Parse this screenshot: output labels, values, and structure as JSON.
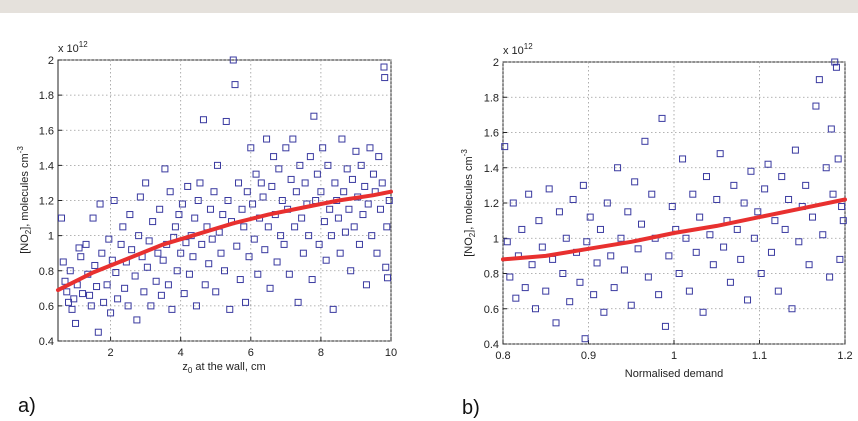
{
  "chart_data": [
    {
      "type": "scatter",
      "panel_label": "a)",
      "xlabel_main": "z",
      "xlabel_sub": "0",
      "xlabel_rest": " at the wall, cm",
      "ylabel_main": "[NO",
      "ylabel_sub": "2",
      "ylabel_rest": "], molecules cm",
      "ylabel_sup": "-3",
      "exponent_base": "x 10",
      "exponent_power": "12",
      "xlim": [
        0.5,
        10
      ],
      "ylim": [
        0.4,
        2.0
      ],
      "xticks": [
        2,
        4,
        6,
        8,
        10
      ],
      "yticks": [
        0.4,
        0.6,
        0.8,
        1.0,
        1.2,
        1.4,
        1.6,
        1.8,
        2.0
      ],
      "xtick_labels": [
        "2",
        "4",
        "6",
        "8",
        "10"
      ],
      "ytick_labels": [
        "0.4",
        "0.6",
        "0.8",
        "1",
        "1.2",
        "1.4",
        "1.6",
        "1.8",
        "2"
      ],
      "grid": true,
      "marker_color": "#3a3aa0",
      "fit_color": "#e8302f",
      "points": [
        [
          0.6,
          1.1
        ],
        [
          0.65,
          0.85
        ],
        [
          0.7,
          0.74
        ],
        [
          0.75,
          0.68
        ],
        [
          0.8,
          0.62
        ],
        [
          0.85,
          0.8
        ],
        [
          0.9,
          0.58
        ],
        [
          0.95,
          0.64
        ],
        [
          1.0,
          0.5
        ],
        [
          1.05,
          0.72
        ],
        [
          1.1,
          0.93
        ],
        [
          1.15,
          0.88
        ],
        [
          1.2,
          0.67
        ],
        [
          1.3,
          0.95
        ],
        [
          1.35,
          0.78
        ],
        [
          1.4,
          0.66
        ],
        [
          1.45,
          0.6
        ],
        [
          1.5,
          1.1
        ],
        [
          1.55,
          0.83
        ],
        [
          1.6,
          0.71
        ],
        [
          1.65,
          0.45
        ],
        [
          1.7,
          1.18
        ],
        [
          1.75,
          0.9
        ],
        [
          1.8,
          0.62
        ],
        [
          1.9,
          0.72
        ],
        [
          1.95,
          0.98
        ],
        [
          2.0,
          0.56
        ],
        [
          2.05,
          0.86
        ],
        [
          2.1,
          1.2
        ],
        [
          2.15,
          0.79
        ],
        [
          2.2,
          0.64
        ],
        [
          2.3,
          0.95
        ],
        [
          2.35,
          1.05
        ],
        [
          2.4,
          0.7
        ],
        [
          2.45,
          0.85
        ],
        [
          2.5,
          0.6
        ],
        [
          2.55,
          1.12
        ],
        [
          2.6,
          0.92
        ],
        [
          2.7,
          0.77
        ],
        [
          2.75,
          0.52
        ],
        [
          2.8,
          1.0
        ],
        [
          2.85,
          1.22
        ],
        [
          2.9,
          0.88
        ],
        [
          2.95,
          0.68
        ],
        [
          3.0,
          1.3
        ],
        [
          3.05,
          0.82
        ],
        [
          3.1,
          0.97
        ],
        [
          3.15,
          0.6
        ],
        [
          3.2,
          1.08
        ],
        [
          3.3,
          0.74
        ],
        [
          3.35,
          0.9
        ],
        [
          3.4,
          1.15
        ],
        [
          3.45,
          0.66
        ],
        [
          3.5,
          0.86
        ],
        [
          3.55,
          1.38
        ],
        [
          3.6,
          0.95
        ],
        [
          3.65,
          0.72
        ],
        [
          3.7,
          1.25
        ],
        [
          3.75,
          0.58
        ],
        [
          3.8,
          0.99
        ],
        [
          3.85,
          1.05
        ],
        [
          3.9,
          0.8
        ],
        [
          3.95,
          1.12
        ],
        [
          4.0,
          0.9
        ],
        [
          4.05,
          1.18
        ],
        [
          4.1,
          0.67
        ],
        [
          4.15,
          0.96
        ],
        [
          4.2,
          1.28
        ],
        [
          4.25,
          0.78
        ],
        [
          4.3,
          1.0
        ],
        [
          4.35,
          0.88
        ],
        [
          4.4,
          1.1
        ],
        [
          4.45,
          0.6
        ],
        [
          4.5,
          1.2
        ],
        [
          4.55,
          1.3
        ],
        [
          4.6,
          0.95
        ],
        [
          4.65,
          1.66
        ],
        [
          4.7,
          0.72
        ],
        [
          4.75,
          1.05
        ],
        [
          4.8,
          0.84
        ],
        [
          4.85,
          1.15
        ],
        [
          4.9,
          0.98
        ],
        [
          4.95,
          1.25
        ],
        [
          5.0,
          0.68
        ],
        [
          5.05,
          1.4
        ],
        [
          5.1,
          1.02
        ],
        [
          5.15,
          0.9
        ],
        [
          5.2,
          1.12
        ],
        [
          5.25,
          0.8
        ],
        [
          5.3,
          1.65
        ],
        [
          5.35,
          1.2
        ],
        [
          5.4,
          0.58
        ],
        [
          5.45,
          1.08
        ],
        [
          5.5,
          2.0
        ],
        [
          5.55,
          1.86
        ],
        [
          5.6,
          0.94
        ],
        [
          5.65,
          1.3
        ],
        [
          5.7,
          0.75
        ],
        [
          5.75,
          1.15
        ],
        [
          5.8,
          1.05
        ],
        [
          5.85,
          0.62
        ],
        [
          5.9,
          1.25
        ],
        [
          5.95,
          0.88
        ],
        [
          6.0,
          1.5
        ],
        [
          6.05,
          1.18
        ],
        [
          6.1,
          0.98
        ],
        [
          6.15,
          1.35
        ],
        [
          6.2,
          0.78
        ],
        [
          6.25,
          1.1
        ],
        [
          6.3,
          1.3
        ],
        [
          6.35,
          1.22
        ],
        [
          6.4,
          0.92
        ],
        [
          6.45,
          1.55
        ],
        [
          6.5,
          1.05
        ],
        [
          6.55,
          0.7
        ],
        [
          6.6,
          1.28
        ],
        [
          6.65,
          1.45
        ],
        [
          6.7,
          1.12
        ],
        [
          6.75,
          0.85
        ],
        [
          6.8,
          1.38
        ],
        [
          6.85,
          1.0
        ],
        [
          6.9,
          1.2
        ],
        [
          6.95,
          0.95
        ],
        [
          7.0,
          1.5
        ],
        [
          7.05,
          1.15
        ],
        [
          7.1,
          0.78
        ],
        [
          7.15,
          1.32
        ],
        [
          7.2,
          1.55
        ],
        [
          7.25,
          1.05
        ],
        [
          7.3,
          1.25
        ],
        [
          7.35,
          0.62
        ],
        [
          7.4,
          1.4
        ],
        [
          7.45,
          1.1
        ],
        [
          7.5,
          0.9
        ],
        [
          7.55,
          1.3
        ],
        [
          7.6,
          1.18
        ],
        [
          7.65,
          1.0
        ],
        [
          7.7,
          1.45
        ],
        [
          7.75,
          0.75
        ],
        [
          7.8,
          1.68
        ],
        [
          7.85,
          1.2
        ],
        [
          7.9,
          1.35
        ],
        [
          7.95,
          0.95
        ],
        [
          8.0,
          1.25
        ],
        [
          8.05,
          1.5
        ],
        [
          8.1,
          1.08
        ],
        [
          8.15,
          0.86
        ],
        [
          8.2,
          1.4
        ],
        [
          8.25,
          1.15
        ],
        [
          8.3,
          1.0
        ],
        [
          8.35,
          0.58
        ],
        [
          8.4,
          1.3
        ],
        [
          8.45,
          1.2
        ],
        [
          8.5,
          1.1
        ],
        [
          8.55,
          0.9
        ],
        [
          8.6,
          1.55
        ],
        [
          8.65,
          1.25
        ],
        [
          8.7,
          1.02
        ],
        [
          8.75,
          1.38
        ],
        [
          8.8,
          1.15
        ],
        [
          8.85,
          0.8
        ],
        [
          8.9,
          1.32
        ],
        [
          8.95,
          1.05
        ],
        [
          9.0,
          1.48
        ],
        [
          9.05,
          1.22
        ],
        [
          9.1,
          0.95
        ],
        [
          9.15,
          1.4
        ],
        [
          9.2,
          1.12
        ],
        [
          9.25,
          1.28
        ],
        [
          9.3,
          0.72
        ],
        [
          9.35,
          1.18
        ],
        [
          9.4,
          1.5
        ],
        [
          9.45,
          1.0
        ],
        [
          9.5,
          1.35
        ],
        [
          9.55,
          1.25
        ],
        [
          9.6,
          0.9
        ],
        [
          9.65,
          1.45
        ],
        [
          9.7,
          1.15
        ],
        [
          9.75,
          1.3
        ],
        [
          9.8,
          1.96
        ],
        [
          9.82,
          1.9
        ],
        [
          9.85,
          0.82
        ],
        [
          9.88,
          1.05
        ],
        [
          9.9,
          0.76
        ],
        [
          9.95,
          1.2
        ]
      ],
      "fit": [
        [
          0.5,
          0.69
        ],
        [
          1.5,
          0.79
        ],
        [
          2.5,
          0.87
        ],
        [
          3.5,
          0.95
        ],
        [
          4.5,
          1.01
        ],
        [
          5.5,
          1.07
        ],
        [
          6.5,
          1.12
        ],
        [
          7.5,
          1.16
        ],
        [
          8.5,
          1.2
        ],
        [
          9.5,
          1.23
        ],
        [
          10,
          1.25
        ]
      ]
    },
    {
      "type": "scatter",
      "panel_label": "b)",
      "xlabel_main": "Normalised demand",
      "ylabel_main": "[NO",
      "ylabel_sub": "2",
      "ylabel_rest": "], molecules cm",
      "ylabel_sup": "-3",
      "exponent_base": "x 10",
      "exponent_power": "12",
      "xlim": [
        0.8,
        1.2
      ],
      "ylim": [
        0.4,
        2.0
      ],
      "xticks": [
        0.8,
        0.9,
        1.0,
        1.1,
        1.2
      ],
      "yticks": [
        0.4,
        0.6,
        0.8,
        1.0,
        1.2,
        1.4,
        1.6,
        1.8,
        2.0
      ],
      "xtick_labels": [
        "0.8",
        "0.9",
        "1",
        "1.1",
        "1.2"
      ],
      "ytick_labels": [
        "0.4",
        "0.6",
        "0.8",
        "1",
        "1.2",
        "1.4",
        "1.6",
        "1.8",
        "2"
      ],
      "grid": true,
      "marker_color": "#3a3aa0",
      "fit_color": "#e8302f",
      "points": [
        [
          0.802,
          1.52
        ],
        [
          0.805,
          0.98
        ],
        [
          0.808,
          0.78
        ],
        [
          0.812,
          1.2
        ],
        [
          0.815,
          0.66
        ],
        [
          0.818,
          0.9
        ],
        [
          0.822,
          1.05
        ],
        [
          0.826,
          0.72
        ],
        [
          0.83,
          1.25
        ],
        [
          0.834,
          0.85
        ],
        [
          0.838,
          0.6
        ],
        [
          0.842,
          1.1
        ],
        [
          0.846,
          0.95
        ],
        [
          0.85,
          0.7
        ],
        [
          0.854,
          1.28
        ],
        [
          0.858,
          0.88
        ],
        [
          0.862,
          0.52
        ],
        [
          0.866,
          1.15
        ],
        [
          0.87,
          0.8
        ],
        [
          0.874,
          1.0
        ],
        [
          0.878,
          0.64
        ],
        [
          0.882,
          1.22
        ],
        [
          0.886,
          0.92
        ],
        [
          0.89,
          0.75
        ],
        [
          0.894,
          1.3
        ],
        [
          0.896,
          0.43
        ],
        [
          0.898,
          0.98
        ],
        [
          0.902,
          1.12
        ],
        [
          0.906,
          0.68
        ],
        [
          0.91,
          0.86
        ],
        [
          0.914,
          1.05
        ],
        [
          0.918,
          0.58
        ],
        [
          0.922,
          1.2
        ],
        [
          0.926,
          0.9
        ],
        [
          0.93,
          0.72
        ],
        [
          0.934,
          1.4
        ],
        [
          0.938,
          1.0
        ],
        [
          0.942,
          0.82
        ],
        [
          0.946,
          1.15
        ],
        [
          0.95,
          0.62
        ],
        [
          0.954,
          1.32
        ],
        [
          0.958,
          0.94
        ],
        [
          0.962,
          1.08
        ],
        [
          0.966,
          1.55
        ],
        [
          0.97,
          0.78
        ],
        [
          0.974,
          1.25
        ],
        [
          0.978,
          1.0
        ],
        [
          0.982,
          0.68
        ],
        [
          0.986,
          1.68
        ],
        [
          0.99,
          0.5
        ],
        [
          0.994,
          0.9
        ],
        [
          0.998,
          1.18
        ],
        [
          1.002,
          1.05
        ],
        [
          1.006,
          0.8
        ],
        [
          1.01,
          1.45
        ],
        [
          1.014,
          1.0
        ],
        [
          1.018,
          0.7
        ],
        [
          1.022,
          1.25
        ],
        [
          1.026,
          0.92
        ],
        [
          1.03,
          1.12
        ],
        [
          1.034,
          0.58
        ],
        [
          1.038,
          1.35
        ],
        [
          1.042,
          1.02
        ],
        [
          1.046,
          0.85
        ],
        [
          1.05,
          1.22
        ],
        [
          1.054,
          1.48
        ],
        [
          1.058,
          0.95
        ],
        [
          1.062,
          1.1
        ],
        [
          1.066,
          0.75
        ],
        [
          1.07,
          1.3
        ],
        [
          1.074,
          1.05
        ],
        [
          1.078,
          0.88
        ],
        [
          1.082,
          1.2
        ],
        [
          1.086,
          0.65
        ],
        [
          1.09,
          1.38
        ],
        [
          1.094,
          1.0
        ],
        [
          1.098,
          1.15
        ],
        [
          1.102,
          0.8
        ],
        [
          1.106,
          1.28
        ],
        [
          1.11,
          1.42
        ],
        [
          1.114,
          0.92
        ],
        [
          1.118,
          1.1
        ],
        [
          1.122,
          0.7
        ],
        [
          1.126,
          1.35
        ],
        [
          1.13,
          1.05
        ],
        [
          1.134,
          1.22
        ],
        [
          1.138,
          0.6
        ],
        [
          1.142,
          1.5
        ],
        [
          1.146,
          0.98
        ],
        [
          1.15,
          1.18
        ],
        [
          1.154,
          1.3
        ],
        [
          1.158,
          0.85
        ],
        [
          1.162,
          1.12
        ],
        [
          1.166,
          1.75
        ],
        [
          1.17,
          1.9
        ],
        [
          1.174,
          1.02
        ],
        [
          1.178,
          1.4
        ],
        [
          1.182,
          0.78
        ],
        [
          1.184,
          1.62
        ],
        [
          1.186,
          1.25
        ],
        [
          1.188,
          2.0
        ],
        [
          1.19,
          1.97
        ],
        [
          1.192,
          1.45
        ],
        [
          1.194,
          0.88
        ],
        [
          1.196,
          1.18
        ],
        [
          1.198,
          1.1
        ]
      ],
      "fit": [
        [
          0.8,
          0.88
        ],
        [
          0.85,
          0.9
        ],
        [
          0.9,
          0.94
        ],
        [
          0.95,
          0.98
        ],
        [
          1.0,
          1.03
        ],
        [
          1.05,
          1.07
        ],
        [
          1.1,
          1.12
        ],
        [
          1.15,
          1.17
        ],
        [
          1.2,
          1.22
        ]
      ]
    }
  ]
}
